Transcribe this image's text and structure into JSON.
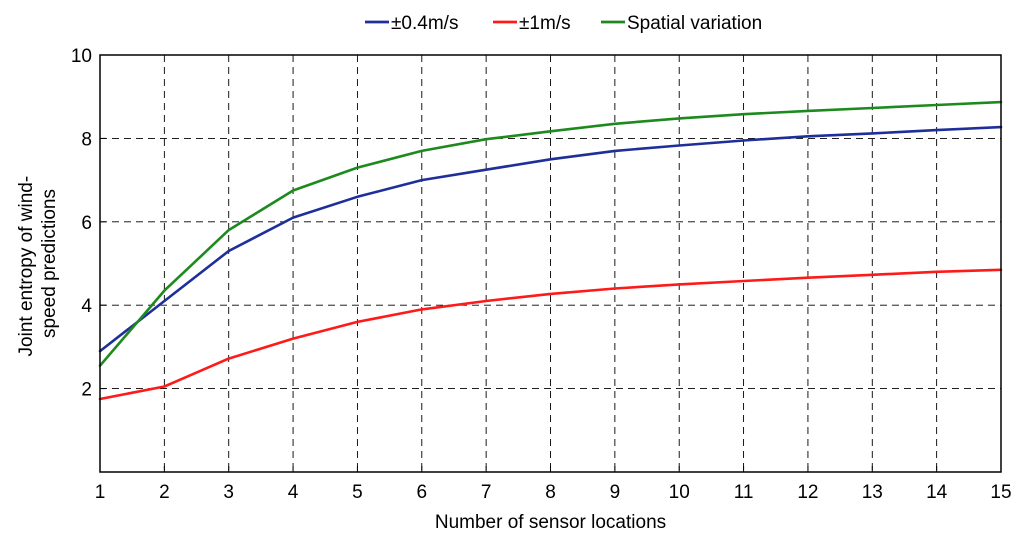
{
  "chart_data": {
    "type": "line",
    "xlabel": "Number of sensor locations",
    "ylabel_lines": [
      "Joint entropy of wind-",
      "speed predictions"
    ],
    "xlim": [
      1,
      15
    ],
    "ylim": [
      0,
      10
    ],
    "x_ticks": [
      1,
      2,
      3,
      4,
      5,
      6,
      7,
      8,
      9,
      10,
      11,
      12,
      13,
      14,
      15
    ],
    "y_ticks": [
      2,
      4,
      6,
      8,
      10
    ],
    "grid": true,
    "legend_position": "top-center",
    "x": [
      1,
      2,
      3,
      4,
      5,
      6,
      7,
      8,
      9,
      10,
      11,
      12,
      13,
      14,
      15
    ],
    "series": [
      {
        "name": "±0.4m/s",
        "color": "#1f2f9a",
        "values": [
          2.9,
          4.1,
          5.3,
          6.1,
          6.6,
          7.0,
          7.25,
          7.5,
          7.7,
          7.83,
          7.95,
          8.05,
          8.12,
          8.2,
          8.27
        ]
      },
      {
        "name": "±1m/s",
        "color": "#ff1a1a",
        "values": [
          1.75,
          2.05,
          2.72,
          3.2,
          3.6,
          3.9,
          4.1,
          4.27,
          4.4,
          4.5,
          4.58,
          4.66,
          4.73,
          4.8,
          4.85
        ]
      },
      {
        "name": "Spatial variation",
        "color": "#1e8a1e",
        "values": [
          2.55,
          4.35,
          5.8,
          6.75,
          7.3,
          7.7,
          7.98,
          8.17,
          8.35,
          8.48,
          8.58,
          8.66,
          8.73,
          8.8,
          8.87
        ]
      }
    ]
  }
}
